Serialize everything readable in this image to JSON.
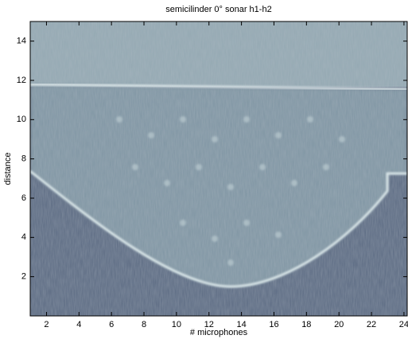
{
  "chart_data": {
    "type": "heatmap",
    "title": "semicilinder 0° sonar h1-h2",
    "xlabel": "# microphones",
    "ylabel": "distance",
    "xlim": [
      1,
      24.2
    ],
    "ylim": [
      0,
      15
    ],
    "xticks": [
      2,
      4,
      6,
      8,
      10,
      12,
      14,
      16,
      18,
      20,
      22,
      24
    ],
    "yticks": [
      2,
      4,
      6,
      8,
      10,
      12,
      14
    ]
  }
}
